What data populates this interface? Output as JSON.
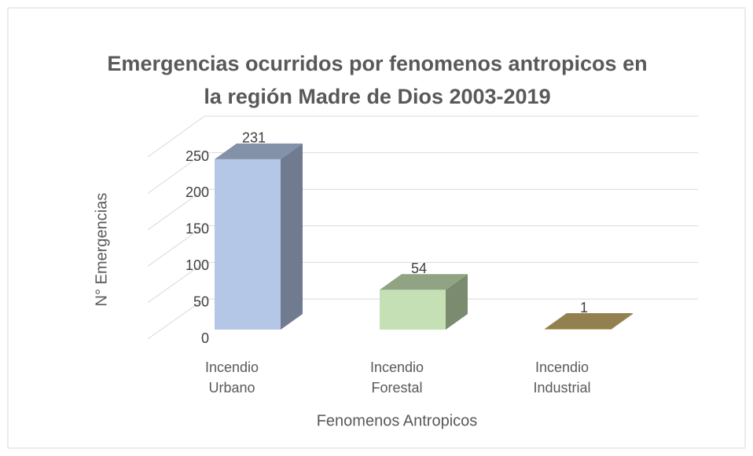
{
  "chart_data": {
    "type": "bar3d",
    "title": "Emergencias ocurridos por fenomenos antropicos en la región Madre de Dios 2003-2019",
    "categories": [
      "Incendio Urbano",
      "Incendio Forestal",
      "Incendio Industrial"
    ],
    "values": [
      231,
      54,
      1
    ],
    "colors": [
      "#b4c7e7",
      "#c5e0b4",
      "#c9b06d"
    ],
    "ylim": [
      0,
      250
    ],
    "yticks": [
      0,
      50,
      100,
      150,
      200,
      250
    ],
    "ylabel": "N° Emergencias",
    "xlabel": "Fenomenos Antropicos",
    "grid": true
  }
}
